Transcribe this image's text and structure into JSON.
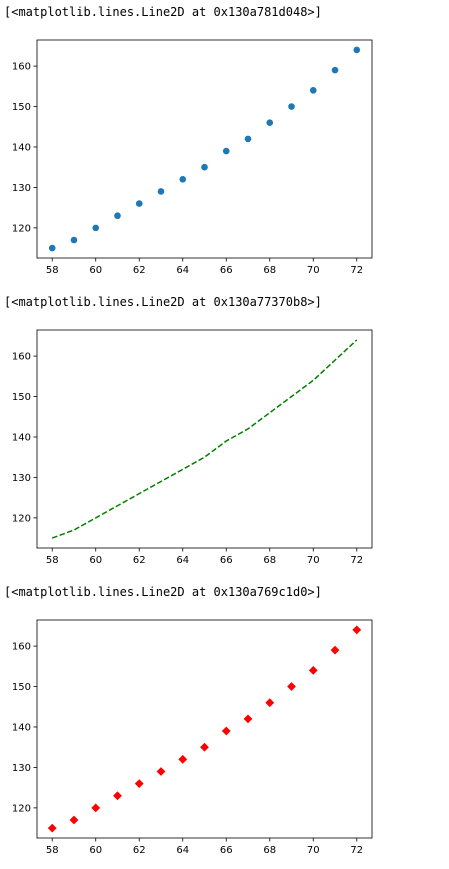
{
  "outputs": [
    "[<matplotlib.lines.Line2D at 0x130a781d048>]",
    "[<matplotlib.lines.Line2D at 0x130a77370b8>]",
    "[<matplotlib.lines.Line2D at 0x130a769c1d0>]"
  ],
  "chart_data": [
    {
      "type": "scatter",
      "marker": "circle",
      "color": "#1f77b4",
      "line_style": "none",
      "x": [
        58,
        59,
        60,
        61,
        62,
        63,
        64,
        65,
        66,
        67,
        68,
        69,
        70,
        71,
        72
      ],
      "y": [
        115,
        117,
        120,
        123,
        126,
        129,
        132,
        135,
        139,
        142,
        146,
        150,
        154,
        159,
        164
      ],
      "xticks": [
        58,
        60,
        62,
        64,
        66,
        68,
        70,
        72
      ],
      "yticks": [
        120,
        130,
        140,
        150,
        160
      ],
      "xlim": [
        57.3,
        72.7
      ],
      "ylim": [
        112.55,
        166.45
      ],
      "grid": false
    },
    {
      "type": "line",
      "marker": "none",
      "color": "#008000",
      "line_style": "dashed",
      "x": [
        58,
        59,
        60,
        61,
        62,
        63,
        64,
        65,
        66,
        67,
        68,
        69,
        70,
        71,
        72
      ],
      "y": [
        115,
        117,
        120,
        123,
        126,
        129,
        132,
        135,
        139,
        142,
        146,
        150,
        154,
        159,
        164
      ],
      "xticks": [
        58,
        60,
        62,
        64,
        66,
        68,
        70,
        72
      ],
      "yticks": [
        120,
        130,
        140,
        150,
        160
      ],
      "xlim": [
        57.3,
        72.7
      ],
      "ylim": [
        112.55,
        166.45
      ],
      "grid": false
    },
    {
      "type": "scatter",
      "marker": "diamond",
      "color": "#ff0000",
      "line_style": "none",
      "x": [
        58,
        59,
        60,
        61,
        62,
        63,
        64,
        65,
        66,
        67,
        68,
        69,
        70,
        71,
        72
      ],
      "y": [
        115,
        117,
        120,
        123,
        126,
        129,
        132,
        135,
        139,
        142,
        146,
        150,
        154,
        159,
        164
      ],
      "xticks": [
        58,
        60,
        62,
        64,
        66,
        68,
        70,
        72
      ],
      "yticks": [
        120,
        130,
        140,
        150,
        160
      ],
      "xlim": [
        57.3,
        72.7
      ],
      "ylim": [
        112.55,
        166.45
      ],
      "grid": false
    }
  ]
}
